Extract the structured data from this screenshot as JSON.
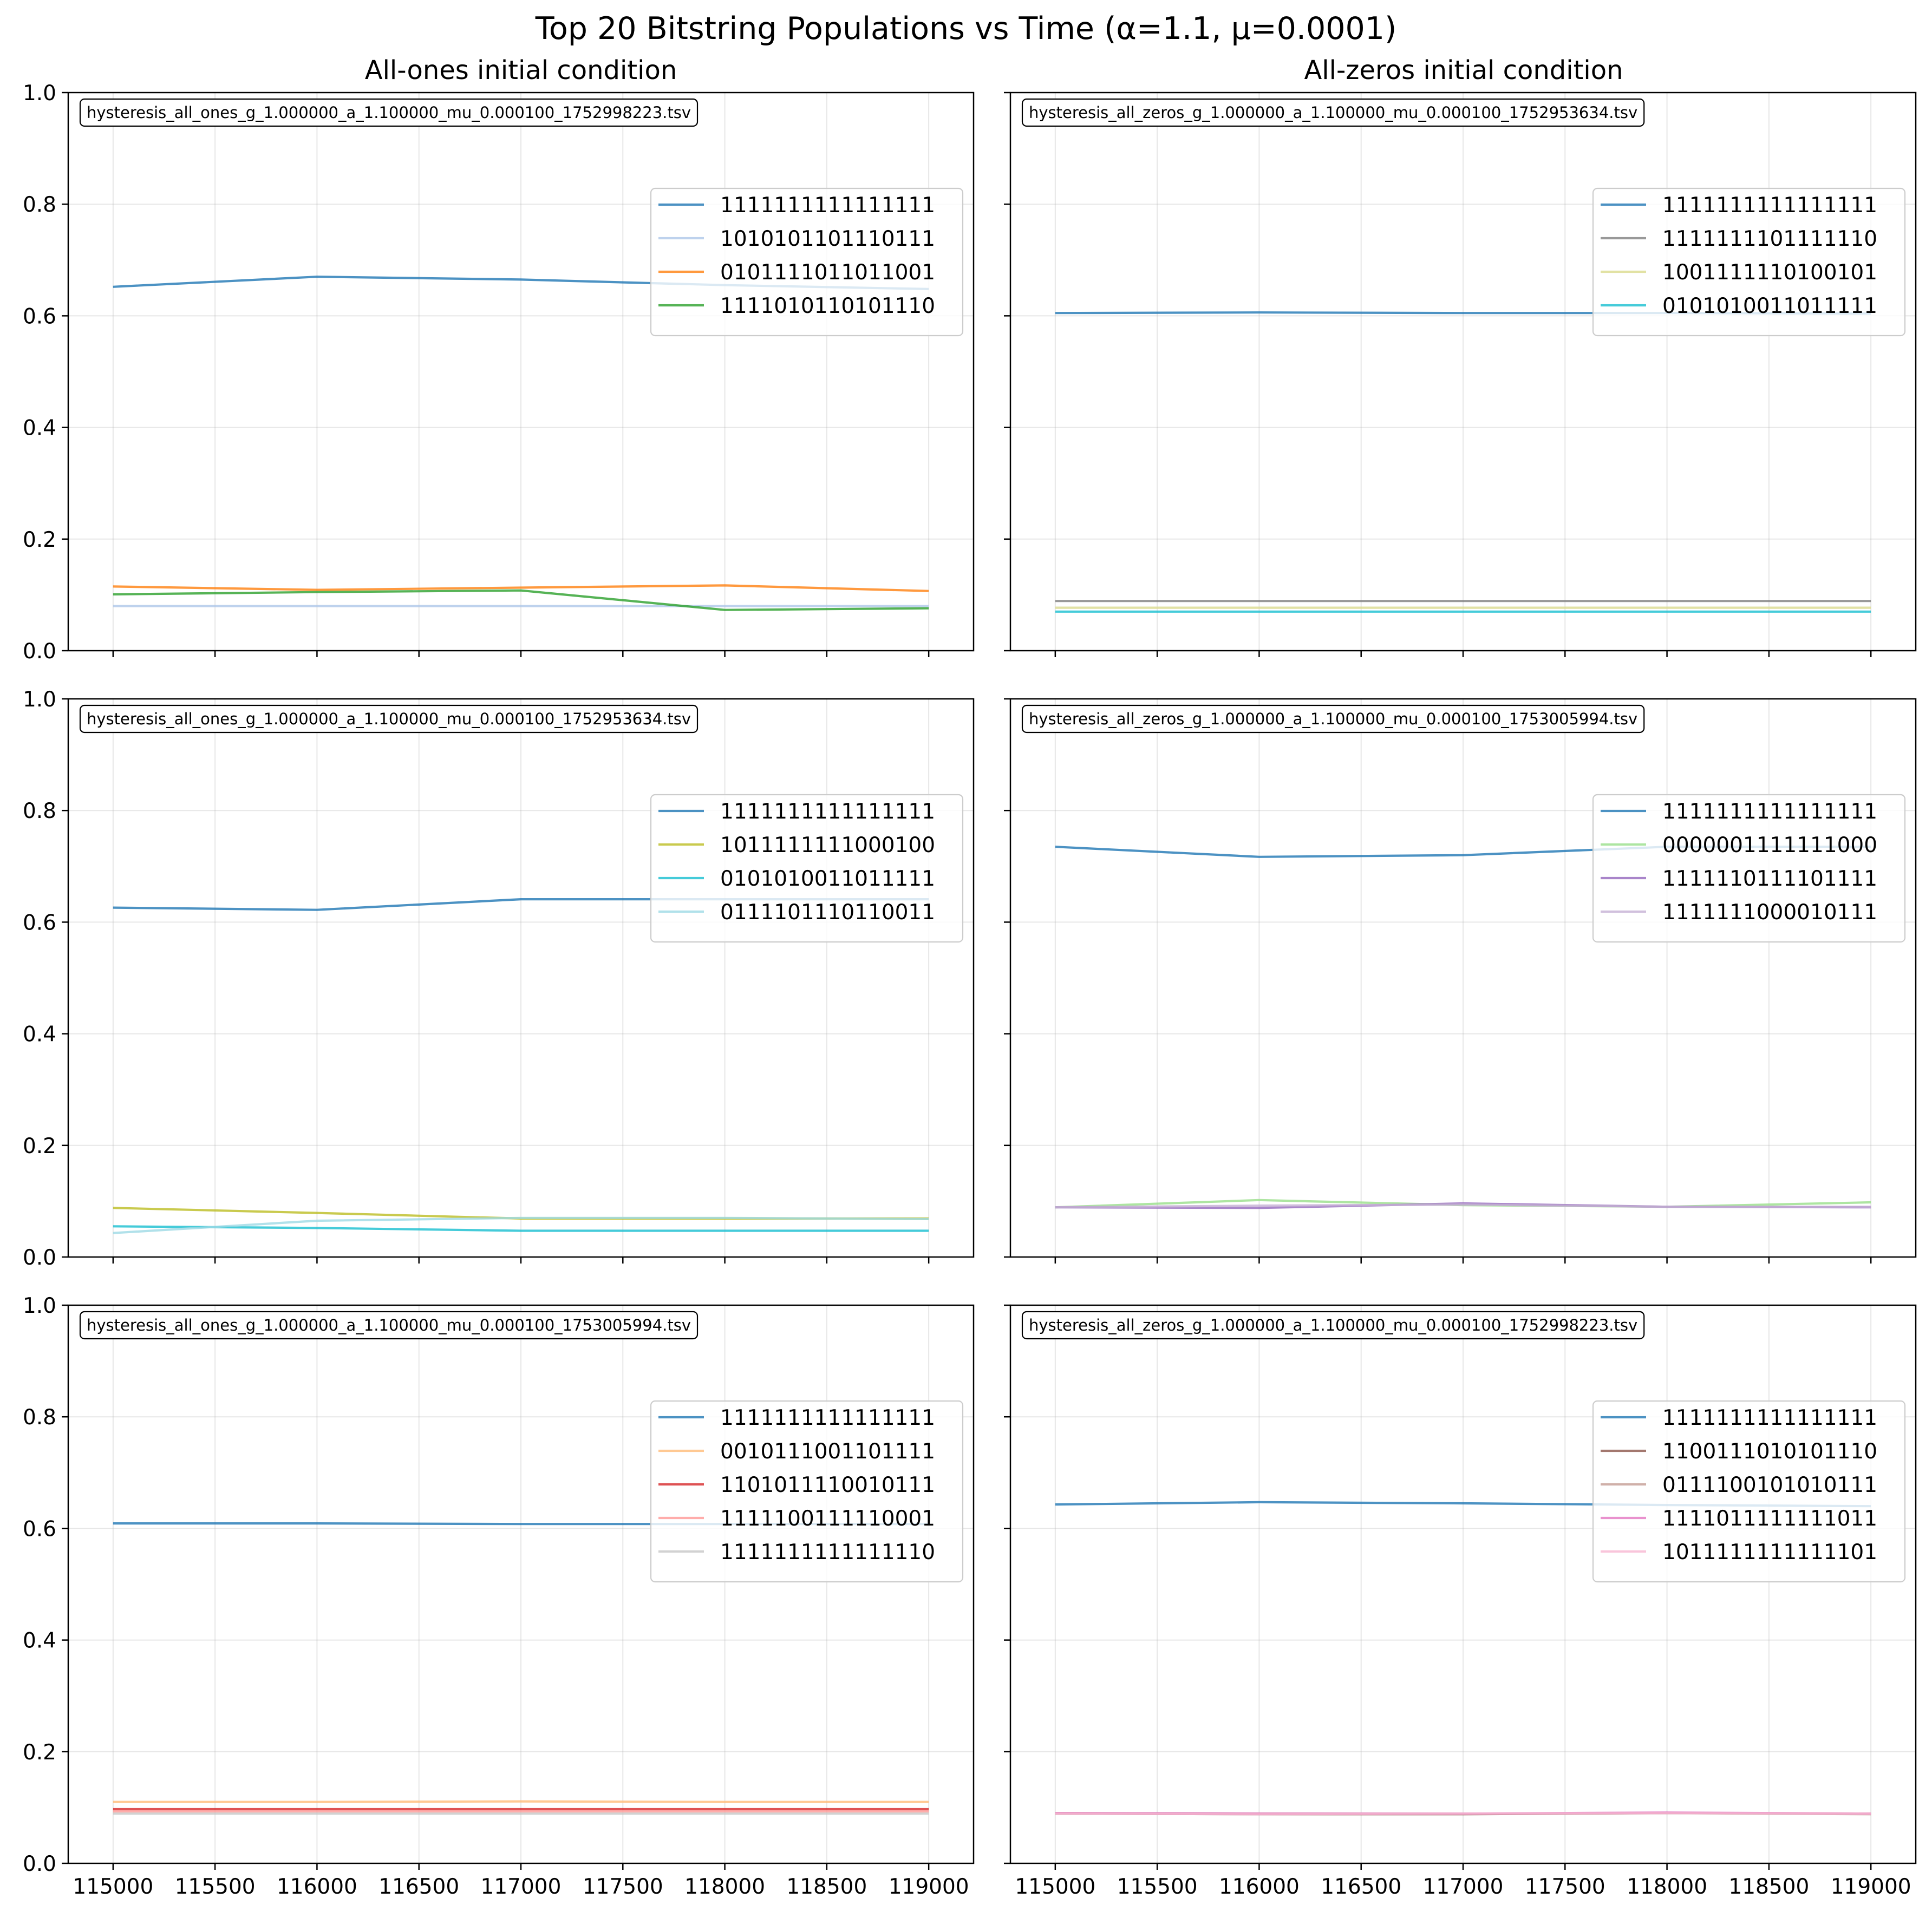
{
  "title": "Top 20 Bitstring Populations vs Time (α=1.1, μ=0.0001)",
  "columns": [
    "All-ones initial condition",
    "All-zeros initial condition"
  ],
  "chart_data": [
    {
      "type": "line",
      "file": "hysteresis_all_ones_g_1.000000_a_1.100000_mu_0.000100_1752998223.tsv",
      "x": [
        115000,
        116000,
        117000,
        118000,
        119000
      ],
      "xticks": [
        115000,
        115500,
        116000,
        116500,
        117000,
        117500,
        118000,
        118500,
        119000
      ],
      "yticks": [
        0.0,
        0.2,
        0.4,
        0.6,
        0.8,
        1.0
      ],
      "xlim": [
        114780,
        119220
      ],
      "ylim": [
        0,
        1
      ],
      "grid": true,
      "legend": "upper-right",
      "series": [
        {
          "name": "1111111111111111",
          "color": "#1f77b4",
          "values": [
            0.652,
            0.67,
            0.665,
            0.655,
            0.648
          ]
        },
        {
          "name": "1010101101110111",
          "color": "#aec7e8",
          "values": [
            0.08,
            0.08,
            0.08,
            0.08,
            0.08
          ]
        },
        {
          "name": "0101111011011001",
          "color": "#ff7f0e",
          "values": [
            0.115,
            0.109,
            0.113,
            0.117,
            0.107
          ]
        },
        {
          "name": "1111010110101110",
          "color": "#2ca02c",
          "values": [
            0.101,
            0.105,
            0.108,
            0.073,
            0.076
          ]
        }
      ]
    },
    {
      "type": "line",
      "file": "hysteresis_all_zeros_g_1.000000_a_1.100000_mu_0.000100_1752953634.tsv",
      "x": [
        115000,
        116000,
        117000,
        118000,
        119000
      ],
      "xticks": [
        115000,
        115500,
        116000,
        116500,
        117000,
        117500,
        118000,
        118500,
        119000
      ],
      "yticks": [
        0.0,
        0.2,
        0.4,
        0.6,
        0.8,
        1.0
      ],
      "xlim": [
        114780,
        119220
      ],
      "ylim": [
        0,
        1
      ],
      "grid": true,
      "legend": "upper-right",
      "series": [
        {
          "name": "1111111111111111",
          "color": "#1f77b4",
          "values": [
            0.605,
            0.606,
            0.605,
            0.605,
            0.604
          ]
        },
        {
          "name": "1111111101111110",
          "color": "#7f7f7f",
          "values": [
            0.089,
            0.089,
            0.089,
            0.089,
            0.089
          ]
        },
        {
          "name": "1001111110100101",
          "color": "#dbdb8d",
          "values": [
            0.077,
            0.077,
            0.077,
            0.077,
            0.077
          ]
        },
        {
          "name": "0101010011011111",
          "color": "#17becf",
          "values": [
            0.07,
            0.07,
            0.07,
            0.07,
            0.07
          ]
        }
      ]
    },
    {
      "type": "line",
      "file": "hysteresis_all_ones_g_1.000000_a_1.100000_mu_0.000100_1752953634.tsv",
      "x": [
        115000,
        116000,
        117000,
        118000,
        119000
      ],
      "xticks": [
        115000,
        115500,
        116000,
        116500,
        117000,
        117500,
        118000,
        118500,
        119000
      ],
      "yticks": [
        0.0,
        0.2,
        0.4,
        0.6,
        0.8,
        1.0
      ],
      "xlim": [
        114780,
        119220
      ],
      "ylim": [
        0,
        1
      ],
      "grid": true,
      "legend": "upper-right",
      "series": [
        {
          "name": "1111111111111111",
          "color": "#1f77b4",
          "values": [
            0.626,
            0.622,
            0.641,
            0.641,
            0.641
          ]
        },
        {
          "name": "1011111111000100",
          "color": "#bcbd22",
          "values": [
            0.088,
            0.079,
            0.069,
            0.069,
            0.069
          ]
        },
        {
          "name": "0101010011011111",
          "color": "#17becf",
          "values": [
            0.055,
            0.052,
            0.047,
            0.047,
            0.047
          ]
        },
        {
          "name": "0111101110110011",
          "color": "#9edae5",
          "values": [
            0.043,
            0.065,
            0.07,
            0.07,
            0.068
          ]
        }
      ]
    },
    {
      "type": "line",
      "file": "hysteresis_all_zeros_g_1.000000_a_1.100000_mu_0.000100_1753005994.tsv",
      "x": [
        115000,
        116000,
        117000,
        118000,
        119000
      ],
      "xticks": [
        115000,
        115500,
        116000,
        116500,
        117000,
        117500,
        118000,
        118500,
        119000
      ],
      "yticks": [
        0.0,
        0.2,
        0.4,
        0.6,
        0.8,
        1.0
      ],
      "xlim": [
        114780,
        119220
      ],
      "ylim": [
        0,
        1
      ],
      "grid": true,
      "legend": "upper-right",
      "series": [
        {
          "name": "1111111111111111",
          "color": "#1f77b4",
          "values": [
            0.735,
            0.717,
            0.72,
            0.735,
            0.735
          ]
        },
        {
          "name": "0000001111111000",
          "color": "#98df8a",
          "values": [
            0.089,
            0.102,
            0.093,
            0.09,
            0.098
          ]
        },
        {
          "name": "1111110111101111",
          "color": "#9467bd",
          "values": [
            0.089,
            0.088,
            0.096,
            0.09,
            0.089
          ]
        },
        {
          "name": "1111111000010111",
          "color": "#c5b0d5",
          "values": [
            0.089,
            0.092,
            0.094,
            0.09,
            0.09
          ]
        }
      ]
    },
    {
      "type": "line",
      "file": "hysteresis_all_ones_g_1.000000_a_1.100000_mu_0.000100_1753005994.tsv",
      "x": [
        115000,
        116000,
        117000,
        118000,
        119000
      ],
      "xticks": [
        115000,
        115500,
        116000,
        116500,
        117000,
        117500,
        118000,
        118500,
        119000
      ],
      "yticks": [
        0.0,
        0.2,
        0.4,
        0.6,
        0.8,
        1.0
      ],
      "xlim": [
        114780,
        119220
      ],
      "ylim": [
        0,
        1
      ],
      "grid": true,
      "legend": "upper-right",
      "series": [
        {
          "name": "1111111111111111",
          "color": "#1f77b4",
          "values": [
            0.609,
            0.609,
            0.608,
            0.608,
            0.608
          ]
        },
        {
          "name": "0010111001101111",
          "color": "#ffbb78",
          "values": [
            0.11,
            0.11,
            0.111,
            0.11,
            0.11
          ]
        },
        {
          "name": "1101011110010111",
          "color": "#d62728",
          "values": [
            0.097,
            0.097,
            0.097,
            0.097,
            0.097
          ]
        },
        {
          "name": "1111100111110001",
          "color": "#ff9896",
          "values": [
            0.093,
            0.093,
            0.093,
            0.093,
            0.093
          ]
        },
        {
          "name": "1111111111111110",
          "color": "#c7c7c7",
          "values": [
            0.089,
            0.089,
            0.089,
            0.089,
            0.089
          ]
        }
      ]
    },
    {
      "type": "line",
      "file": "hysteresis_all_zeros_g_1.000000_a_1.100000_mu_0.000100_1752998223.tsv",
      "x": [
        115000,
        116000,
        117000,
        118000,
        119000
      ],
      "xticks": [
        115000,
        115500,
        116000,
        116500,
        117000,
        117500,
        118000,
        118500,
        119000
      ],
      "yticks": [
        0.0,
        0.2,
        0.4,
        0.6,
        0.8,
        1.0
      ],
      "xlim": [
        114780,
        119220
      ],
      "ylim": [
        0,
        1
      ],
      "grid": true,
      "legend": "upper-right",
      "series": [
        {
          "name": "1111111111111111",
          "color": "#1f77b4",
          "values": [
            0.643,
            0.647,
            0.645,
            0.642,
            0.64
          ]
        },
        {
          "name": "1100111010101110",
          "color": "#8c564b",
          "values": [
            0.089,
            0.088,
            0.088,
            0.09,
            0.089
          ]
        },
        {
          "name": "0111100101010111",
          "color": "#c49c94",
          "values": [
            0.09,
            0.089,
            0.089,
            0.09,
            0.088
          ]
        },
        {
          "name": "1111011111111011",
          "color": "#e377c2",
          "values": [
            0.09,
            0.089,
            0.089,
            0.091,
            0.089
          ]
        },
        {
          "name": "1011111111111101",
          "color": "#f7b6d2",
          "values": [
            0.089,
            0.088,
            0.089,
            0.09,
            0.089
          ]
        }
      ]
    }
  ]
}
